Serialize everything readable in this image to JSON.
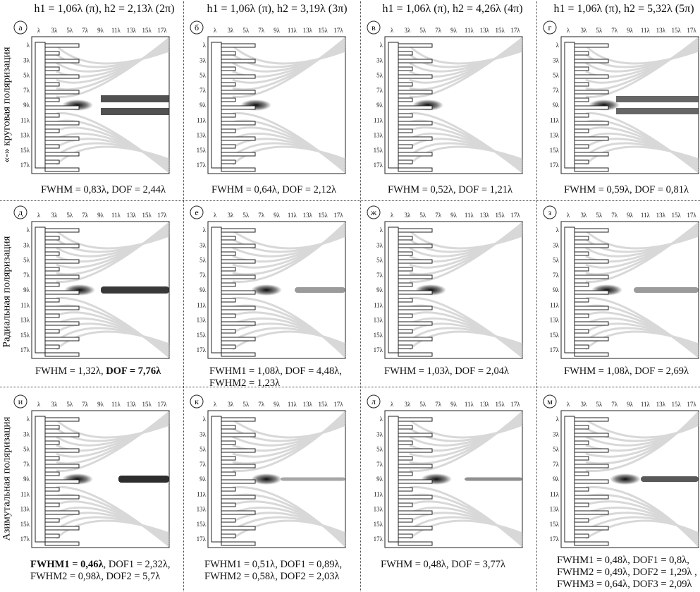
{
  "col_headers": [
    "h1 = 1,06λ (π), h2 = 2,13λ (2π)",
    "h1 = 1,06λ (π), h2 = 3,19λ (3π)",
    "h1 = 1,06λ (π), h2 = 4,26λ (4π)",
    "h1 = 1,06λ (π), h2 = 5,32λ (5π)"
  ],
  "row_labels": [
    "«-» круговая поляризация",
    "Радиальная поляризация",
    "Азимутальная поляризация"
  ],
  "axis_ticks": {
    "x": [
      "λ",
      "3λ",
      "5λ",
      "7λ",
      "9λ",
      "11λ",
      "13λ",
      "15λ",
      "17λ"
    ],
    "y": [
      "λ",
      "3λ",
      "5λ",
      "7λ",
      "9λ",
      "11λ",
      "13λ",
      "15λ",
      "17λ"
    ]
  },
  "panels": [
    {
      "letter": "а",
      "caption": [
        "FWHM = 0,83λ, DOF = 2,44λ"
      ]
    },
    {
      "letter": "б",
      "caption": [
        "FWHM = 0,64λ, DOF = 2,12λ"
      ]
    },
    {
      "letter": "в",
      "caption": [
        "FWHM = 0,52λ, DOF = 1,21λ"
      ]
    },
    {
      "letter": "г",
      "caption": [
        "FWHM = 0,59λ, DOF = 0,81λ"
      ]
    },
    {
      "letter": "д",
      "caption": [
        "FWHM = 1,32λ, ",
        "DOF = 7,76λ"
      ]
    },
    {
      "letter": "е",
      "caption": [
        "FWHM1 = 1,08λ, DOF = 4,48λ,",
        "FWHM2 = 1,23λ"
      ]
    },
    {
      "letter": "ж",
      "caption": [
        "FWHM = 1,03λ, DOF = 2,04λ"
      ]
    },
    {
      "letter": "з",
      "caption": [
        "FWHM = 1,08λ, DOF = 2,69λ"
      ]
    },
    {
      "letter": "и",
      "caption": [
        "FWHM1 = 0,46λ",
        ", DOF1 = 2,32λ,",
        "FWHM2 = 0,98λ, DOF2 = 5,7λ"
      ]
    },
    {
      "letter": "к",
      "caption": [
        "FWHM1 = 0,51λ, DOF1 = 0,89λ,",
        "FWHM2 = 0,58λ, DOF2 = 2,03λ"
      ]
    },
    {
      "letter": "л",
      "caption": [
        "FWHM = 0,48λ, DOF = 3,77λ"
      ]
    },
    {
      "letter": "м",
      "caption": [
        "FWHM1 = 0,48λ, DOF1 = 0,8λ,",
        "FWHM2 = 0,49λ, DOF2 = 1,29λ ,",
        "FWHM3 = 0,64λ, DOF3 = 2,09λ"
      ]
    }
  ]
}
